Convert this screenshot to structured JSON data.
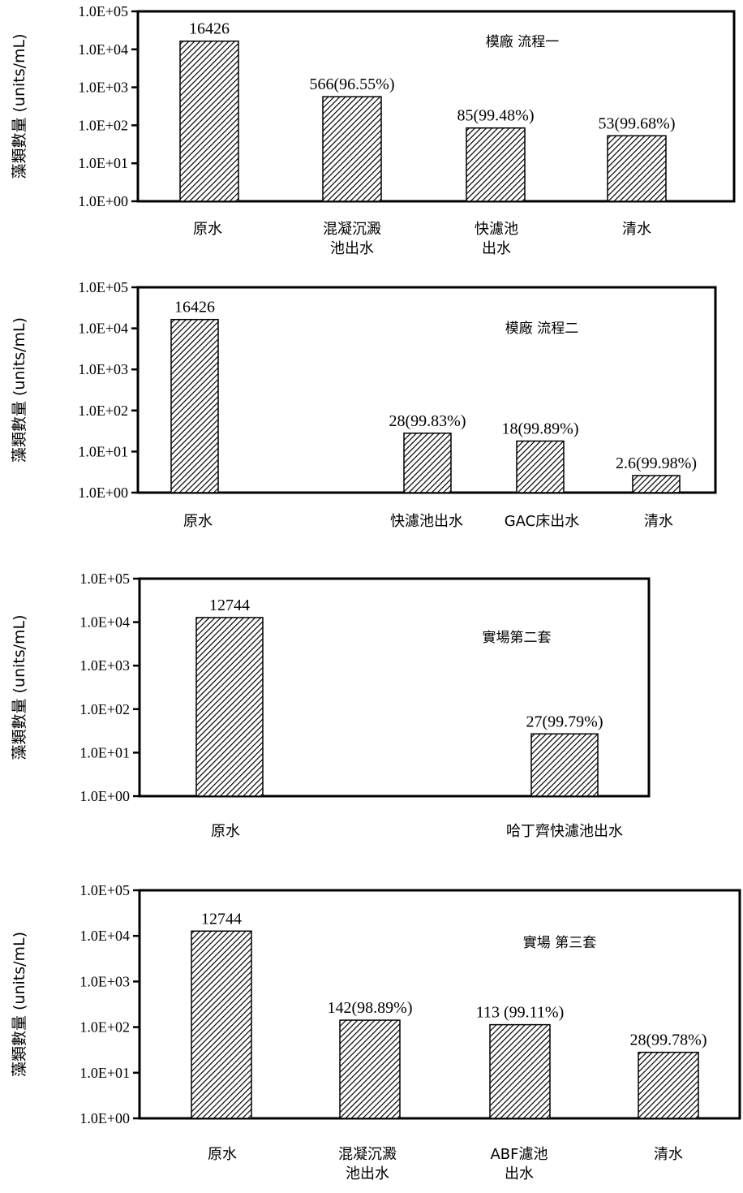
{
  "chart_data": [
    {
      "type": "bar",
      "title": "模廠  流程一",
      "ylabel": "藻類數量 (units/mL)",
      "yscale": "log",
      "ylim": [
        1,
        100000
      ],
      "yticks": [
        "1.0E+00",
        "1.0E+01",
        "1.0E+02",
        "1.0E+03",
        "1.0E+04",
        "1.0E+05"
      ],
      "categories": [
        [
          "原水"
        ],
        [
          "混凝沉澱",
          "池出水"
        ],
        [
          "快濾池",
          "出水"
        ],
        [
          "清水"
        ]
      ],
      "values": [
        16426,
        566,
        85,
        53
      ],
      "data_labels": [
        "16426",
        "566(96.55%)",
        "85(99.48%)",
        "53(99.68%)"
      ]
    },
    {
      "type": "bar",
      "title": "模廠 流程二",
      "ylabel": "藻類數量 (units/mL)",
      "yscale": "log",
      "ylim": [
        1,
        100000
      ],
      "yticks": [
        "1.0E+00",
        "1.0E+01",
        "1.0E+02",
        "1.0E+03",
        "1.0E+04",
        "1.0E+05"
      ],
      "categories": [
        [
          "原水"
        ],
        [
          "快濾池出水"
        ],
        [
          "GAC床出水"
        ],
        [
          "清水"
        ]
      ],
      "values": [
        16426,
        28,
        18,
        2.6
      ],
      "data_labels": [
        "16426",
        "28(99.83%)",
        "18(99.89%)",
        "2.6(99.98%)"
      ]
    },
    {
      "type": "bar",
      "title": "實場第二套",
      "ylabel": "藻類數量 (units/mL)",
      "yscale": "log",
      "ylim": [
        1,
        100000
      ],
      "yticks": [
        "1.0E+00",
        "1.0E+01",
        "1.0E+02",
        "1.0E+03",
        "1.0E+04",
        "1.0E+05"
      ],
      "categories": [
        [
          "原水"
        ],
        [
          "哈丁齊快濾池出水"
        ]
      ],
      "values": [
        12744,
        27
      ],
      "data_labels": [
        "12744",
        "27(99.79%)"
      ]
    },
    {
      "type": "bar",
      "title": "實場  第三套",
      "ylabel": "藻類數量 (units/mL)",
      "yscale": "log",
      "ylim": [
        1,
        100000
      ],
      "yticks": [
        "1.0E+00",
        "1.0E+01",
        "1.0E+02",
        "1.0E+03",
        "1.0E+04",
        "1.0E+05"
      ],
      "categories": [
        [
          "原水"
        ],
        [
          "混凝沉澱",
          "池出水"
        ],
        [
          "ABF濾池",
          "出水"
        ],
        [
          "清水"
        ]
      ],
      "values": [
        12744,
        142,
        113,
        28
      ],
      "data_labels": [
        "12744",
        "142(98.89%)",
        "113 (99.11%)",
        "28(99.78%)"
      ]
    }
  ]
}
